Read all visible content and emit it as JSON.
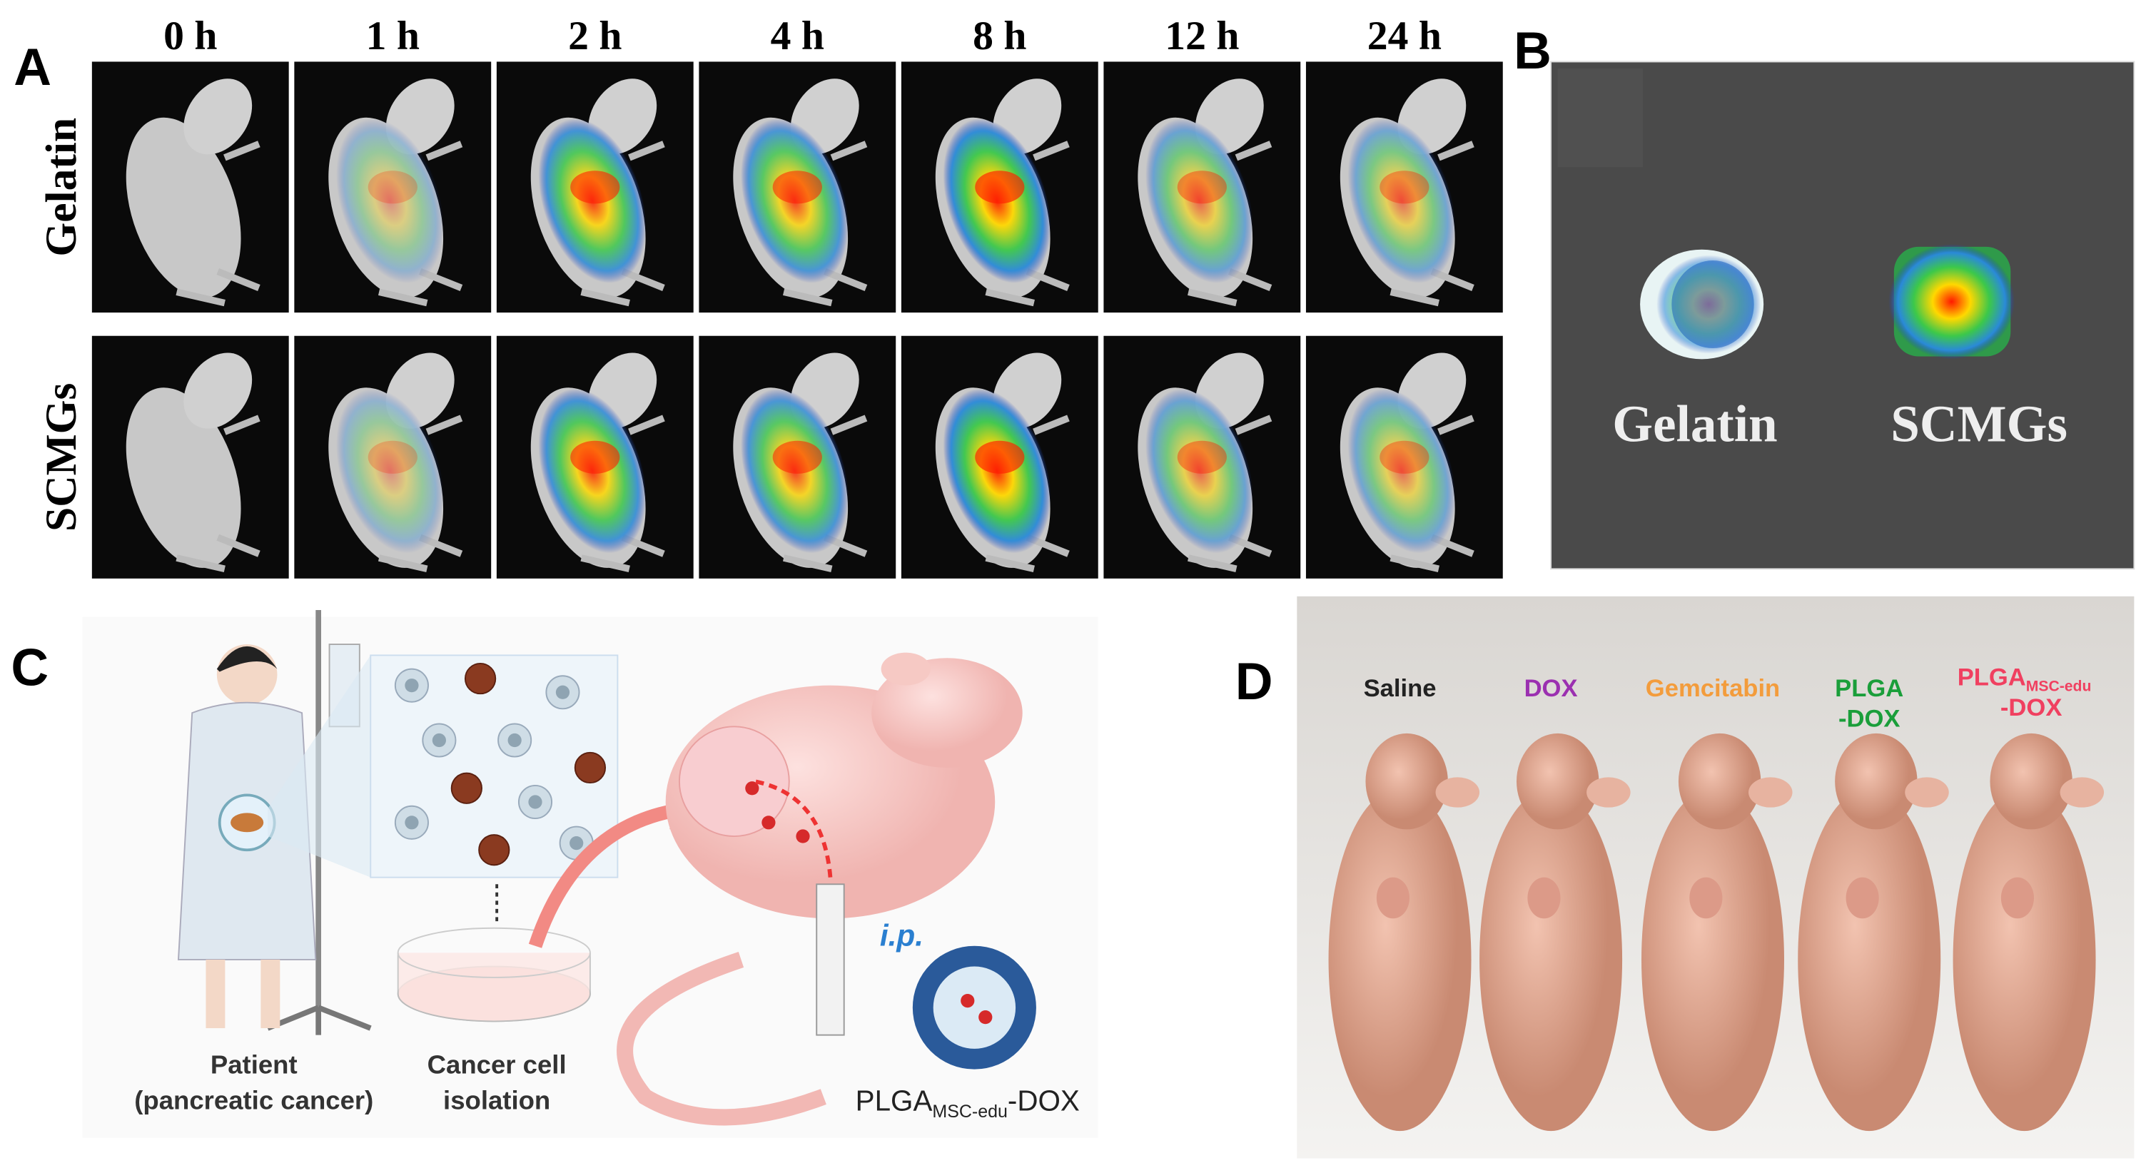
{
  "panel_a": {
    "label": "A",
    "times": [
      "0 h",
      "1 h",
      "2 h",
      "4 h",
      "8 h",
      "12 h",
      "24 h"
    ],
    "rows": [
      "Gelatin",
      "SCMGs"
    ]
  },
  "panel_b": {
    "label": "B",
    "samples": [
      "Gelatin",
      "SCMGs"
    ]
  },
  "panel_c": {
    "label": "C",
    "patient": [
      "Patient",
      "(pancreatic cancer)"
    ],
    "isolation": [
      "Cancer cell",
      "isolation"
    ],
    "route": "i.p.",
    "drug": {
      "name": "PLGA",
      "subscript": "MSC-edu",
      "suffix": "-DOX"
    }
  },
  "panel_d": {
    "label": "D",
    "groups": [
      {
        "lines": [
          "Saline"
        ],
        "color": "#222222"
      },
      {
        "lines": [
          "DOX"
        ],
        "color": "#9b30b0"
      },
      {
        "lines": [
          "Gemcitabin"
        ],
        "color": "#f39c3c"
      },
      {
        "lines": [
          "PLGA",
          "-DOX"
        ],
        "color": "#1a9e3a"
      },
      {
        "name": "PLGA",
        "subscript": "MSC-edu",
        "suffix": "-DOX",
        "color": "#f04060"
      }
    ]
  }
}
